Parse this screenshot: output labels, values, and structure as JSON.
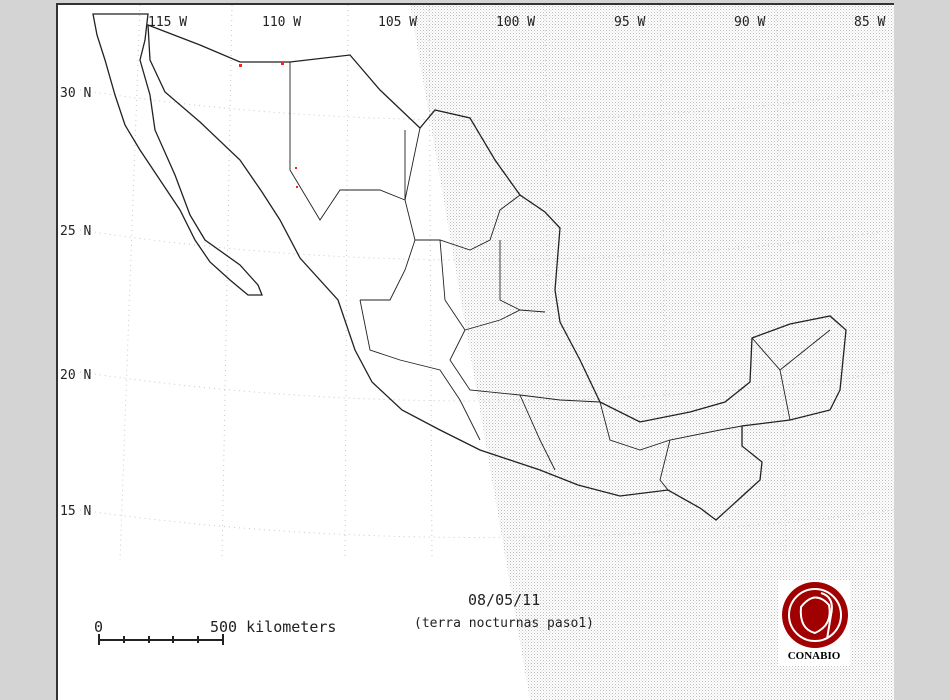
{
  "map": {
    "longitude_labels": [
      "115 W",
      "110 W",
      "105 W",
      "100 W",
      "95 W",
      "90 W",
      "85 W"
    ],
    "latitude_labels": [
      "30 N",
      "25 N",
      "20 N",
      "15 N"
    ],
    "date": "08/05/11",
    "subtitle": "(terra nocturnas paso1)",
    "scale": {
      "start_label": "0",
      "end_label": "500 kilometers"
    },
    "logo": {
      "text": "CONABIO",
      "color": "#a00000"
    },
    "colors": {
      "border": "#222222",
      "hotspot": "#ff2020",
      "night_shade": "#c8c8c8",
      "grid": "#cccccc"
    },
    "hotspot_count": 4
  }
}
